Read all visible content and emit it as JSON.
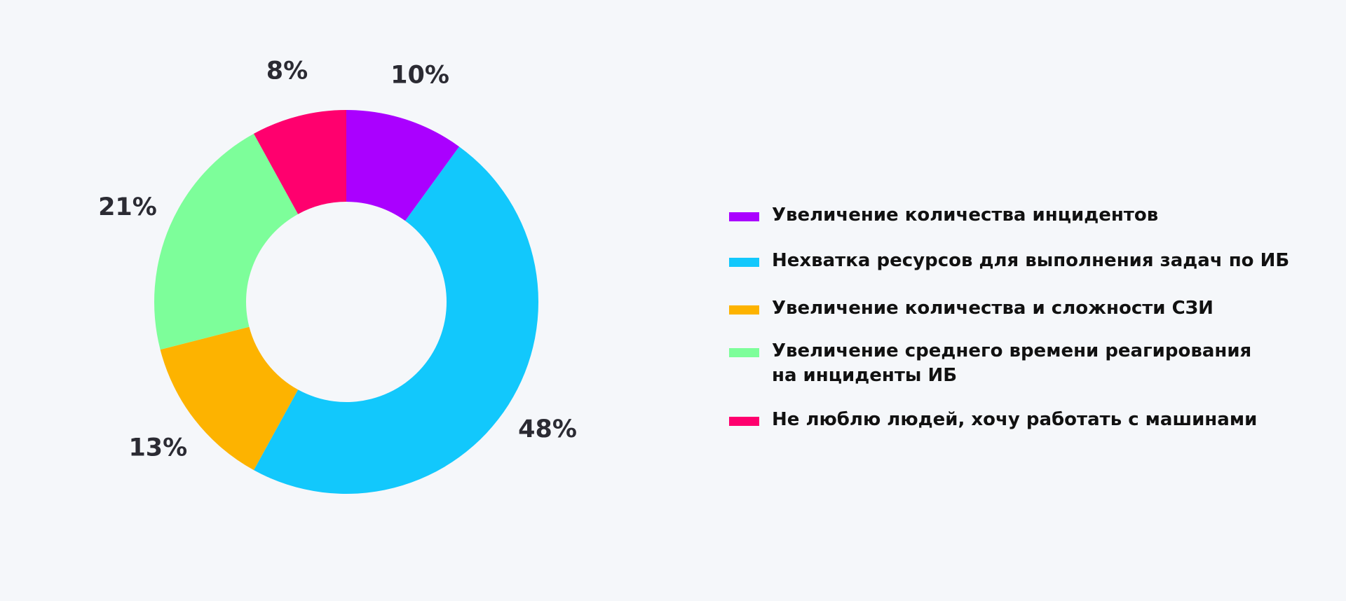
{
  "chart_data": {
    "type": "pie",
    "donut": true,
    "categories": [
      "Увеличение количества инцидентов",
      "Нехватка ресурсов для выполнения задач по ИБ",
      "Увеличение количества и сложности СЗИ",
      "Увеличение среднего времени реагирования\nна инциденты ИБ",
      "Не люблю людей, хочу работать с машинами"
    ],
    "values": [
      10,
      48,
      13,
      21,
      8
    ],
    "value_labels": [
      "10%",
      "48%",
      "13%",
      "21%",
      "8%"
    ],
    "colors": [
      "#aa00ff",
      "#12c8fc",
      "#fdb300",
      "#7dfe9a",
      "#ff006e"
    ],
    "title": "",
    "legend_position": "right"
  }
}
